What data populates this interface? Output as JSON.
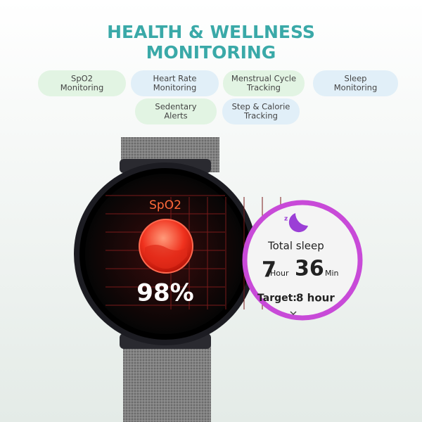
{
  "header": {
    "title": [
      "HEALTH & WELLNESS",
      "MONITORING"
    ]
  },
  "features": [
    [
      "SpO2",
      "Monitoring"
    ],
    [
      "Heart Rate",
      "Monitoring"
    ],
    [
      "Menstrual Cycle",
      "Tracking"
    ],
    [
      "Sleep",
      "Monitoring"
    ],
    [
      "Sedentary",
      "Alerts"
    ],
    [
      "Step & Calorie",
      "Tracking"
    ]
  ],
  "watch_screen": {
    "label": "SpO2",
    "value": "98%"
  },
  "sleep_screen": {
    "title": "Total sleep",
    "hours": "7",
    "hour_unit": "Hour",
    "minutes": "36",
    "minute_unit": "Min",
    "target_label": "Target:",
    "target_value": "8 hour"
  }
}
